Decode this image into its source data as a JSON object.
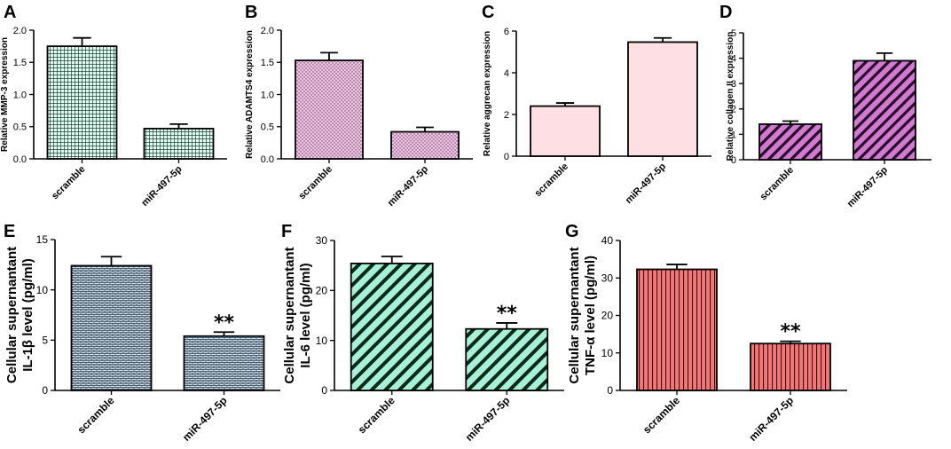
{
  "chart_data": [
    {
      "panel": "A",
      "type": "bar",
      "categories": [
        "scramble",
        "miR-497-5p"
      ],
      "values": [
        1.75,
        0.47
      ],
      "errors": [
        0.13,
        0.07
      ],
      "ylabel": "Relative  MMP-3 expression",
      "ylim": [
        0,
        2.0
      ],
      "yticks": [
        "0.0",
        "0.5",
        "1.0",
        "1.5",
        "2.0"
      ],
      "annotations": [
        "",
        ""
      ],
      "fill_color": "#e6f7f2",
      "pattern": "grid"
    },
    {
      "panel": "B",
      "type": "bar",
      "categories": [
        "scramble",
        "miR-497-5p"
      ],
      "values": [
        1.53,
        0.42
      ],
      "errors": [
        0.12,
        0.07
      ],
      "ylabel": "Relative ADAMTS4 expression",
      "ylim": [
        0,
        2.0
      ],
      "yticks": [
        "0.0",
        "0.5",
        "1.0",
        "1.5",
        "2.0"
      ],
      "annotations": [
        "",
        ""
      ],
      "fill_color": "#ecc8e4",
      "pattern": "dots"
    },
    {
      "panel": "C",
      "type": "bar",
      "categories": [
        "scramble",
        "miR-497-5p"
      ],
      "values": [
        2.4,
        5.47
      ],
      "errors": [
        0.15,
        0.2
      ],
      "ylabel": "Relative aggrecan expression",
      "ylim": [
        0,
        6
      ],
      "yticks": [
        "0",
        "2",
        "4",
        "6"
      ],
      "annotations": [
        "",
        ""
      ],
      "fill_color": "#fddfe4",
      "pattern": "none"
    },
    {
      "panel": "D",
      "type": "bar",
      "categories": [
        "scramble",
        "miR-497-5p"
      ],
      "values": [
        1.4,
        3.9
      ],
      "errors": [
        0.12,
        0.3
      ],
      "ylabel": "Relative collagen II  expression",
      "ylim": [
        0,
        5
      ],
      "yticks": [
        "0",
        "1",
        "2",
        "3",
        "4",
        "5"
      ],
      "annotations": [
        "",
        ""
      ],
      "fill_color": "#d07ad0",
      "pattern": "diag-right"
    },
    {
      "panel": "E",
      "type": "bar",
      "categories": [
        "scramble",
        "miR-497-5p"
      ],
      "values": [
        12.4,
        5.4
      ],
      "errors": [
        0.9,
        0.4
      ],
      "ylabel": [
        "Cellular supernantant",
        "IL-1β level (pg/ml)"
      ],
      "ylim": [
        0,
        15
      ],
      "yticks": [
        "0",
        "5",
        "10",
        "15"
      ],
      "annotations": [
        "",
        "**"
      ],
      "fill_color": "#cfe0ea",
      "pattern": "brick"
    },
    {
      "panel": "F",
      "type": "bar",
      "categories": [
        "scramble",
        "miR-497-5p"
      ],
      "values": [
        25.4,
        12.3
      ],
      "errors": [
        1.4,
        1.2
      ],
      "ylabel": [
        "Cellular supernantant",
        "IL-6 level (pg/ml)"
      ],
      "ylim": [
        0,
        30
      ],
      "yticks": [
        "0",
        "10",
        "20",
        "30"
      ],
      "annotations": [
        "",
        "**"
      ],
      "fill_color": "#a8f0d8",
      "pattern": "diag-right-thick"
    },
    {
      "panel": "G",
      "type": "bar",
      "categories": [
        "scramble",
        "miR-497-5p"
      ],
      "values": [
        32.3,
        12.5
      ],
      "errors": [
        1.3,
        0.6
      ],
      "ylabel": [
        "Cellular supernantant",
        "TNF-α level (pg/ml)"
      ],
      "ylim": [
        0,
        40
      ],
      "yticks": [
        "0",
        "10",
        "20",
        "30",
        "40"
      ],
      "annotations": [
        "",
        "**"
      ],
      "fill_color": "#f47777",
      "pattern": "vertical"
    }
  ]
}
